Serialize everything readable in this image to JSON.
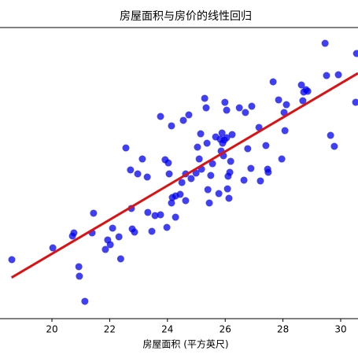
{
  "chart_data": {
    "type": "scatter",
    "title": "房屋面积与房价的线性回归",
    "xlabel": "房屋面积 (平方英尺)",
    "xlim": [
      18.2,
      30.6
    ],
    "ylim": [
      0,
      100
    ],
    "xticks": [
      20,
      22,
      24,
      26,
      28,
      30
    ],
    "color": "#0000ee",
    "x": [
      18.61,
      20.03,
      20.71,
      20.76,
      20.93,
      20.95,
      21.14,
      21.39,
      21.44,
      21.85,
      21.93,
      22.02,
      22.1,
      22.32,
      22.38,
      22.56,
      22.72,
      22.75,
      22.78,
      22.86,
      22.97,
      23.13,
      23.3,
      23.32,
      23.46,
      23.57,
      23.76,
      23.76,
      23.92,
      23.98,
      24.03,
      24.06,
      24.14,
      24.14,
      24.17,
      24.28,
      24.28,
      24.44,
      24.5,
      24.55,
      24.63,
      24.63,
      24.74,
      24.82,
      24.99,
      25.04,
      25.1,
      25.15,
      25.18,
      25.29,
      25.34,
      25.37,
      25.4,
      25.45,
      25.5,
      25.56,
      25.67,
      25.78,
      25.83,
      25.86,
      25.89,
      25.91,
      25.94,
      25.97,
      25.99,
      26.05,
      26.05,
      26.08,
      26.1,
      26.13,
      26.16,
      26.19,
      26.24,
      26.49,
      26.65,
      26.7,
      26.78,
      26.89,
      26.92,
      27.17,
      27.22,
      27.41,
      27.47,
      27.49,
      27.66,
      27.85,
      27.96,
      28.04,
      28.07,
      28.12,
      28.64,
      28.69,
      28.72,
      28.8,
      28.86,
      29.46,
      29.51,
      29.65,
      29.78,
      29.92,
      30.55,
      30.52
    ],
    "values": [
      20.27,
      24.32,
      28.38,
      29.46,
      17.84,
      14.59,
      5.95,
      29.46,
      36.22,
      23.78,
      27.03,
      25.41,
      31.08,
      28.11,
      20.54,
      58.65,
      51.08,
      37.84,
      30.81,
      29.73,
      49.73,
      54.86,
      48.65,
      36.49,
      30.0,
      35.41,
      35.68,
      69.46,
      54.59,
      31.35,
      53.51,
      49.73,
      66.22,
      39.73,
      41.62,
      42.16,
      34.86,
      42.7,
      46.76,
      68.11,
      49.73,
      40.54,
      70.0,
      48.11,
      50.0,
      58.92,
      54.86,
      63.51,
      51.35,
      75.68,
      72.43,
      60.27,
      44.32,
      39.73,
      49.19,
      53.24,
      62.43,
      42.97,
      61.62,
      57.57,
      63.78,
      60.27,
      55.95,
      61.35,
      74.32,
      71.62,
      62.16,
      44.59,
      48.92,
      41.35,
      50.27,
      54.05,
      63.24,
      72.43,
      47.57,
      70.81,
      58.38,
      51.62,
      72.97,
      65.68,
      47.3,
      59.46,
      51.35,
      50.27,
      81.35,
      75.14,
      54.86,
      70.81,
      64.59,
      73.51,
      80.27,
      74.86,
      77.84,
      78.65,
      78.11,
      94.59,
      83.51,
      62.97,
      59.19,
      83.78,
      91.08,
      74.32
    ],
    "fit": {
      "color": "#dd1111",
      "x": [
        18.6,
        30.6
      ],
      "values": [
        14.1,
        84.3
      ]
    }
  }
}
